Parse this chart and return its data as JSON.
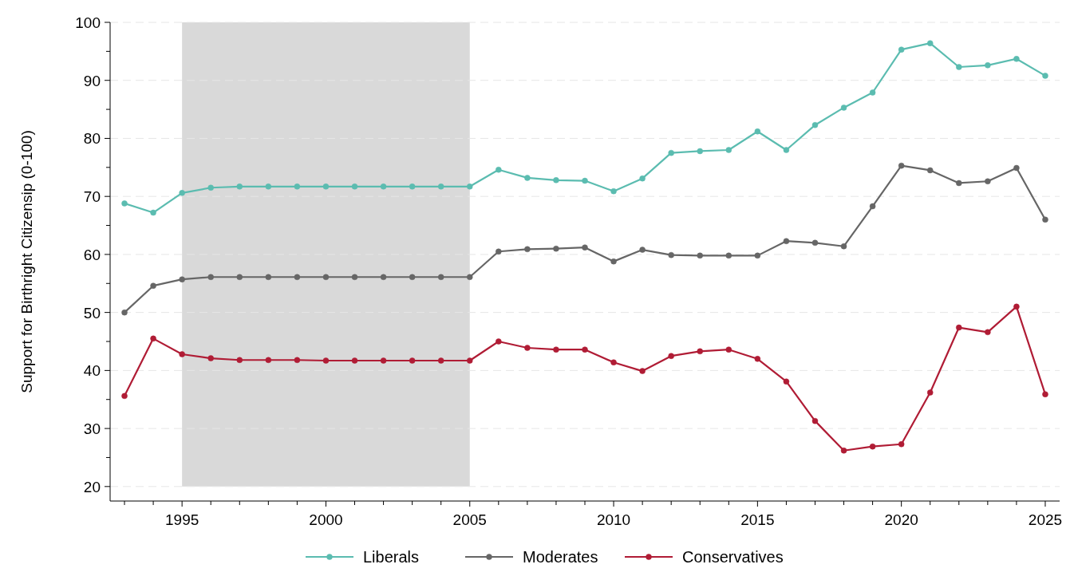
{
  "chart_data": {
    "type": "line",
    "ylabel": "Support for Birthright Citizensip (0-100)",
    "x": [
      1993,
      1994,
      1995,
      1996,
      1997,
      1998,
      1999,
      2000,
      2001,
      2002,
      2003,
      2004,
      2005,
      2006,
      2007,
      2008,
      2009,
      2010,
      2011,
      2012,
      2013,
      2014,
      2015,
      2016,
      2017,
      2018,
      2019,
      2020,
      2021,
      2022,
      2023,
      2024,
      2025
    ],
    "series": [
      {
        "name": "Liberals",
        "color": "#5bbcb0",
        "values": [
          68.8,
          67.2,
          70.6,
          71.5,
          71.7,
          71.7,
          71.7,
          71.7,
          71.7,
          71.7,
          71.7,
          71.7,
          71.7,
          74.6,
          73.2,
          72.8,
          72.7,
          70.9,
          73.1,
          77.5,
          77.8,
          78.0,
          81.2,
          78.0,
          82.3,
          85.3,
          87.9,
          95.3,
          96.4,
          92.3,
          92.6,
          93.7,
          90.8
        ]
      },
      {
        "name": "Moderates",
        "color": "#666666",
        "values": [
          50.0,
          54.6,
          55.7,
          56.1,
          56.1,
          56.1,
          56.1,
          56.1,
          56.1,
          56.1,
          56.1,
          56.1,
          56.1,
          60.5,
          60.9,
          61.0,
          61.2,
          58.8,
          60.8,
          59.9,
          59.8,
          59.8,
          59.8,
          62.3,
          62.0,
          61.4,
          68.3,
          75.3,
          74.5,
          72.3,
          72.6,
          74.9,
          66.0
        ]
      },
      {
        "name": "Conservatives",
        "color": "#b01c35",
        "values": [
          35.6,
          45.5,
          42.8,
          42.1,
          41.8,
          41.8,
          41.8,
          41.7,
          41.7,
          41.7,
          41.7,
          41.7,
          41.7,
          45.0,
          43.9,
          43.6,
          43.6,
          41.4,
          39.9,
          42.5,
          43.3,
          43.6,
          42.0,
          38.1,
          31.3,
          26.2,
          26.9,
          27.3,
          36.2,
          47.4,
          46.6,
          51.0,
          35.9
        ]
      }
    ],
    "xlim": [
      1992.5,
      2025.5
    ],
    "ylim": [
      17.5,
      100
    ],
    "xticks": [
      {
        "value": 1993,
        "label": null
      },
      {
        "value": 1994,
        "label": null
      },
      1995,
      {
        "value": 1996,
        "label": null
      },
      {
        "value": 1997,
        "label": null
      },
      {
        "value": 1998,
        "label": null
      },
      {
        "value": 1999,
        "label": null
      },
      2000,
      {
        "value": 2001,
        "label": null
      },
      {
        "value": 2002,
        "label": null
      },
      {
        "value": 2003,
        "label": null
      },
      {
        "value": 2004,
        "label": null
      },
      2005,
      {
        "value": 2006,
        "label": null
      },
      {
        "value": 2007,
        "label": null
      },
      {
        "value": 2008,
        "label": null
      },
      {
        "value": 2009,
        "label": null
      },
      2010,
      {
        "value": 2011,
        "label": null
      },
      {
        "value": 2012,
        "label": null
      },
      {
        "value": 2013,
        "label": null
      },
      {
        "value": 2014,
        "label": null
      },
      2015,
      {
        "value": 2016,
        "label": null
      },
      {
        "value": 2017,
        "label": null
      },
      {
        "value": 2018,
        "label": null
      },
      {
        "value": 2019,
        "label": null
      },
      2020,
      {
        "value": 2021,
        "label": null
      },
      {
        "value": 2022,
        "label": null
      },
      {
        "value": 2023,
        "label": null
      },
      {
        "value": 2024,
        "label": null
      },
      2025
    ],
    "yticks": [
      20,
      {
        "value": 25,
        "label": null
      },
      30,
      {
        "value": 35,
        "label": null
      },
      40,
      {
        "value": 45,
        "label": null
      },
      50,
      {
        "value": 55,
        "label": null
      },
      60,
      {
        "value": 65,
        "label": null
      },
      70,
      {
        "value": 75,
        "label": null
      },
      80,
      {
        "value": 85,
        "label": null
      },
      90,
      {
        "value": 95,
        "label": null
      },
      100
    ],
    "bands": [
      {
        "axis": "x",
        "from": 1995,
        "to": 2005,
        "color": "#d9d9d9"
      }
    ],
    "grid": "y",
    "legend": "bottom",
    "marker": "circle",
    "line_style": "solid"
  }
}
